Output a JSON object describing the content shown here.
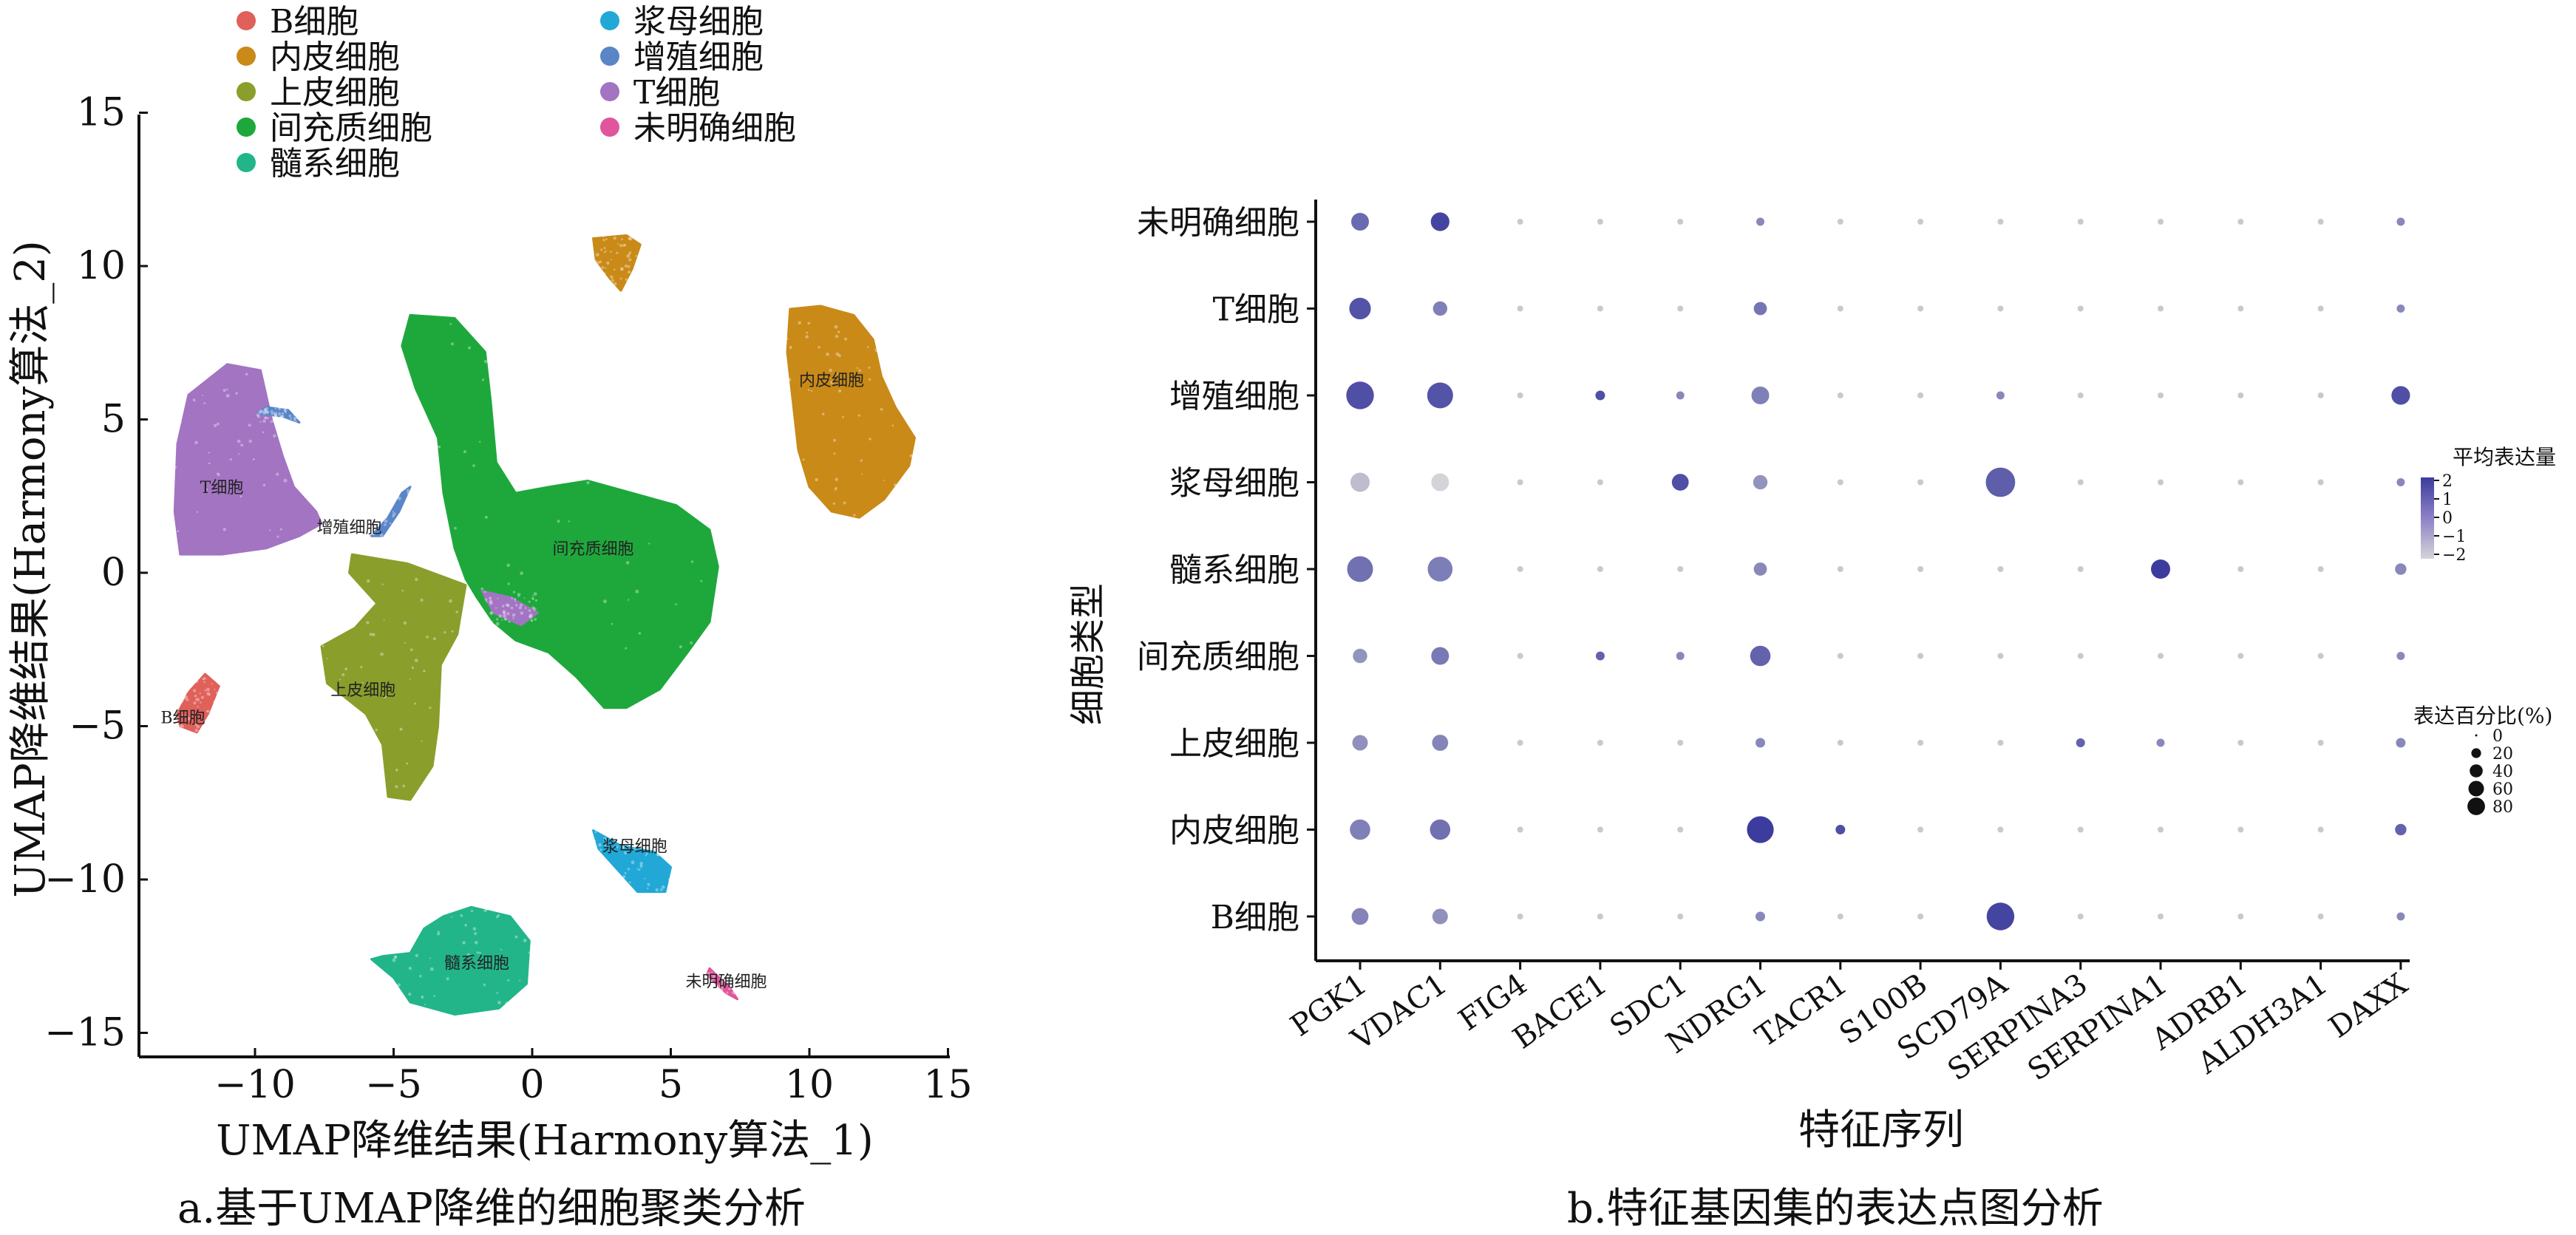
{
  "panels": {
    "a_caption": "a.基于UMAP降维的细胞聚类分析",
    "b_caption": "b.特征基因集的表达点图分析"
  },
  "chart_data": [
    {
      "type": "scatter",
      "subtype": "umap",
      "xlabel": "UMAP降维结果(Harmony算法_1)",
      "ylabel": "UMAP降维结果(Harmony算法_2)",
      "xlim": [
        -14,
        15
      ],
      "ylim": [
        -16,
        15
      ],
      "xticks": [
        -10,
        -5,
        0,
        5,
        10,
        15
      ],
      "yticks": [
        15,
        10,
        5,
        0,
        -5,
        -10,
        -15
      ],
      "xtick_labels": [
        "−10",
        "−5",
        "0",
        "5",
        "10",
        "15"
      ],
      "ytick_labels": [
        "15",
        "10",
        "5",
        "0",
        "−5",
        "−10",
        "−15"
      ],
      "legend": [
        {
          "name": "B细胞",
          "color": "#e0605a"
        },
        {
          "name": "内皮细胞",
          "color": "#c98a18"
        },
        {
          "name": "上皮细胞",
          "color": "#8a9e2c"
        },
        {
          "name": "间充质细胞",
          "color": "#1ea83c"
        },
        {
          "name": "髓系细胞",
          "color": "#22b58a"
        },
        {
          "name": "浆母细胞",
          "color": "#22a8d6"
        },
        {
          "name": "增殖细胞",
          "color": "#5a86c8"
        },
        {
          "name": "T细胞",
          "color": "#a274c2"
        },
        {
          "name": "未明确细胞",
          "color": "#e0559b"
        }
      ],
      "clusters": [
        {
          "label": "B细胞",
          "color": "#e0605a",
          "label_pos": [
            -12.6,
            -4.9
          ],
          "polygon": [
            [
              -12.8,
              -4.6
            ],
            [
              -12.4,
              -3.9
            ],
            [
              -11.8,
              -3.3
            ],
            [
              -11.3,
              -3.7
            ],
            [
              -11.7,
              -4.6
            ],
            [
              -12.1,
              -5.2
            ],
            [
              -12.7,
              -5.0
            ]
          ]
        },
        {
          "label": "内皮细胞",
          "color": "#c98a18",
          "label_pos": [
            10.8,
            6.1
          ],
          "polygon": [
            [
              9.3,
              8.6
            ],
            [
              10.4,
              8.7
            ],
            [
              11.6,
              8.4
            ],
            [
              12.3,
              7.6
            ],
            [
              12.6,
              6.4
            ],
            [
              13.1,
              5.4
            ],
            [
              13.8,
              4.4
            ],
            [
              13.6,
              3.5
            ],
            [
              12.7,
              2.4
            ],
            [
              11.8,
              1.8
            ],
            [
              10.8,
              2.0
            ],
            [
              10.0,
              2.8
            ],
            [
              9.6,
              4.0
            ],
            [
              9.4,
              5.6
            ],
            [
              9.2,
              7.2
            ]
          ]
        },
        {
          "label": "上皮细胞",
          "color": "#8a9e2c",
          "label_pos": [
            -6.1,
            -4.0
          ],
          "polygon": [
            [
              -6.5,
              0.6
            ],
            [
              -4.5,
              0.3
            ],
            [
              -3.0,
              -0.2
            ],
            [
              -2.4,
              -0.4
            ],
            [
              -2.7,
              -2.0
            ],
            [
              -3.3,
              -3.0
            ],
            [
              -3.4,
              -5.0
            ],
            [
              -3.6,
              -6.3
            ],
            [
              -4.4,
              -7.4
            ],
            [
              -5.2,
              -7.3
            ],
            [
              -5.4,
              -5.6
            ],
            [
              -6.0,
              -4.6
            ],
            [
              -7.4,
              -3.6
            ],
            [
              -7.6,
              -2.4
            ],
            [
              -6.4,
              -1.8
            ],
            [
              -5.6,
              -1.0
            ],
            [
              -6.6,
              0.0
            ]
          ]
        },
        {
          "label": "间充质细胞",
          "color": "#1ea83c",
          "label_pos": [
            2.2,
            0.6
          ],
          "polygon": [
            [
              -4.4,
              8.4
            ],
            [
              -2.8,
              8.3
            ],
            [
              -1.7,
              7.2
            ],
            [
              -1.5,
              5.6
            ],
            [
              -1.3,
              3.6
            ],
            [
              -0.6,
              2.6
            ],
            [
              0.6,
              2.8
            ],
            [
              2.0,
              3.0
            ],
            [
              3.6,
              2.6
            ],
            [
              5.2,
              2.2
            ],
            [
              6.4,
              1.4
            ],
            [
              6.7,
              0.2
            ],
            [
              6.4,
              -1.6
            ],
            [
              5.6,
              -2.6
            ],
            [
              4.6,
              -3.8
            ],
            [
              3.4,
              -4.4
            ],
            [
              2.6,
              -4.4
            ],
            [
              1.6,
              -3.4
            ],
            [
              0.6,
              -2.6
            ],
            [
              -0.6,
              -2.2
            ],
            [
              -1.4,
              -1.6
            ],
            [
              -2.0,
              -0.8
            ],
            [
              -2.4,
              -0.2
            ],
            [
              -2.8,
              0.8
            ],
            [
              -3.2,
              2.6
            ],
            [
              -3.4,
              4.4
            ],
            [
              -4.2,
              6.0
            ],
            [
              -4.7,
              7.4
            ]
          ]
        },
        {
          "label": "髓系细胞",
          "color": "#22b58a",
          "label_pos": [
            -2.0,
            -12.9
          ],
          "polygon": [
            [
              -3.2,
              -11.2
            ],
            [
              -2.2,
              -10.9
            ],
            [
              -0.8,
              -11.2
            ],
            [
              -0.1,
              -12.0
            ],
            [
              -0.2,
              -13.4
            ],
            [
              -1.2,
              -14.2
            ],
            [
              -2.8,
              -14.4
            ],
            [
              -4.4,
              -14.0
            ],
            [
              -5.0,
              -13.2
            ],
            [
              -5.8,
              -12.6
            ],
            [
              -5.4,
              -12.5
            ],
            [
              -4.4,
              -12.4
            ],
            [
              -3.9,
              -11.6
            ]
          ]
        },
        {
          "label": "浆母细胞",
          "color": "#22a8d6",
          "label_pos": [
            3.7,
            -9.1
          ],
          "polygon": [
            [
              2.2,
              -8.4
            ],
            [
              3.2,
              -8.9
            ],
            [
              4.4,
              -9.1
            ],
            [
              5.0,
              -9.6
            ],
            [
              4.8,
              -10.4
            ],
            [
              3.8,
              -10.4
            ],
            [
              3.2,
              -9.8
            ],
            [
              2.4,
              -9.0
            ]
          ]
        },
        {
          "label": "增殖细胞",
          "color": "#5a86c8",
          "label_pos": [
            -6.6,
            1.3
          ],
          "polygon": [
            [
              -5.4,
              1.2
            ],
            [
              -4.8,
              2.0
            ],
            [
              -4.4,
              2.8
            ],
            [
              -4.7,
              2.6
            ],
            [
              -5.2,
              1.8
            ],
            [
              -5.8,
              1.2
            ]
          ]
        },
        {
          "label": "T细胞",
          "color": "#a274c2",
          "label_pos": [
            -11.2,
            2.6
          ],
          "polygon": [
            [
              -12.4,
              5.8
            ],
            [
              -11.0,
              6.8
            ],
            [
              -9.8,
              6.6
            ],
            [
              -9.4,
              5.0
            ],
            [
              -9.0,
              3.8
            ],
            [
              -8.6,
              2.8
            ],
            [
              -7.8,
              2.0
            ],
            [
              -7.6,
              1.6
            ],
            [
              -8.4,
              1.2
            ],
            [
              -9.6,
              0.8
            ],
            [
              -11.2,
              0.6
            ],
            [
              -12.7,
              0.6
            ],
            [
              -12.9,
              2.0
            ],
            [
              -12.8,
              4.2
            ]
          ]
        },
        {
          "label": "未明确细胞",
          "color": "#e0559b",
          "label_pos": [
            7.0,
            -13.5
          ],
          "polygon": [
            [
              6.4,
              -12.9
            ],
            [
              7.1,
              -13.5
            ],
            [
              7.4,
              -13.9
            ],
            [
              7.0,
              -13.7
            ],
            [
              6.3,
              -13.1
            ]
          ]
        }
      ],
      "extra_blobs": [
        {
          "color": "#c98a18",
          "polygon": [
            [
              2.2,
              10.9
            ],
            [
              3.4,
              11.0
            ],
            [
              3.9,
              10.7
            ],
            [
              3.6,
              9.9
            ],
            [
              3.2,
              9.2
            ],
            [
              2.8,
              9.6
            ],
            [
              2.3,
              10.2
            ]
          ]
        },
        {
          "color": "#5a86c8",
          "polygon": [
            [
              -9.9,
              5.2
            ],
            [
              -9.0,
              5.1
            ],
            [
              -8.4,
              4.9
            ],
            [
              -8.8,
              5.3
            ],
            [
              -9.6,
              5.4
            ]
          ]
        },
        {
          "color": "#a274c2",
          "polygon": [
            [
              -1.8,
              -0.6
            ],
            [
              -0.8,
              -0.8
            ],
            [
              0.2,
              -1.3
            ],
            [
              -0.4,
              -1.7
            ],
            [
              -1.4,
              -1.3
            ]
          ]
        }
      ]
    },
    {
      "type": "scatter",
      "subtype": "dotplot",
      "xlabel": "特征序列",
      "ylabel": "细胞类型",
      "genes": [
        "PGK1",
        "VDAC1",
        "FIG4",
        "BACE1",
        "SDC1",
        "NDRG1",
        "TACR1",
        "S100B",
        "SCD79A",
        "SERPINA3",
        "SERPINA1",
        "ADRB1",
        "ALDH3A1",
        "DAXX"
      ],
      "cell_types": [
        "未明确细胞",
        "T细胞",
        "增殖细胞",
        "浆母细胞",
        "髓系细胞",
        "间充质细胞",
        "上皮细胞",
        "内皮细胞",
        "B细胞"
      ],
      "pct_expressed": [
        [
          25,
          28,
          1,
          1,
          1,
          3,
          1,
          1,
          1,
          1,
          1,
          1,
          1,
          3
        ],
        [
          40,
          15,
          1,
          1,
          1,
          12,
          1,
          1,
          1,
          1,
          1,
          1,
          1,
          3
        ],
        [
          70,
          60,
          1,
          5,
          3,
          25,
          1,
          1,
          3,
          1,
          1,
          1,
          1,
          28
        ],
        [
          30,
          25,
          1,
          1,
          22,
          15,
          1,
          1,
          80,
          1,
          1,
          1,
          1,
          3
        ],
        [
          60,
          55,
          1,
          1,
          1,
          12,
          1,
          1,
          1,
          1,
          30,
          1,
          1,
          8
        ],
        [
          15,
          25,
          1,
          4,
          3,
          35,
          1,
          1,
          1,
          1,
          1,
          1,
          1,
          3
        ],
        [
          18,
          20,
          1,
          1,
          1,
          5,
          1,
          1,
          1,
          4,
          3,
          1,
          1,
          5
        ],
        [
          35,
          35,
          1,
          1,
          1,
          65,
          5,
          1,
          1,
          1,
          1,
          1,
          1,
          8
        ],
        [
          22,
          18,
          1,
          1,
          1,
          5,
          1,
          1,
          70,
          1,
          1,
          1,
          1,
          3
        ]
      ],
      "avg_expression": [
        [
          0.8,
          1.8,
          0,
          0,
          0,
          0,
          0,
          0,
          0,
          0,
          0,
          0,
          0,
          0
        ],
        [
          1.4,
          0.2,
          0,
          0,
          0,
          0.5,
          0,
          0,
          0,
          0,
          0,
          0,
          0,
          0
        ],
        [
          1.5,
          1.4,
          0,
          1.5,
          0,
          0.2,
          0,
          0,
          0,
          0,
          0,
          0,
          0,
          1.5
        ],
        [
          -1.4,
          -2.0,
          0,
          0,
          1.5,
          -0.3,
          0,
          0,
          1.1,
          0,
          0,
          0,
          0,
          0
        ],
        [
          0.6,
          0.3,
          0,
          0,
          0,
          0,
          0,
          0,
          0,
          0,
          2.0,
          0,
          0,
          0
        ],
        [
          -0.3,
          0.4,
          0,
          1.0,
          0,
          1.0,
          0,
          0,
          0,
          0,
          0,
          0,
          0,
          0
        ],
        [
          -0.2,
          0.1,
          0,
          0,
          0,
          0,
          0,
          0,
          0,
          1.0,
          0,
          0,
          0,
          0
        ],
        [
          0.2,
          0.6,
          0,
          0,
          0,
          2.0,
          1.5,
          0,
          0,
          0,
          0,
          0,
          0,
          1.0
        ],
        [
          0.1,
          -0.2,
          0,
          0,
          0,
          0,
          0,
          0,
          1.8,
          0,
          0,
          0,
          0,
          0
        ]
      ],
      "color_legend": {
        "title": "平均表达量",
        "ticks": [
          2,
          1,
          0,
          -1,
          -2
        ],
        "tick_labels": [
          "2",
          "1",
          "0",
          "−1",
          "−2"
        ],
        "high_color": "#3c3c9e",
        "low_color": "#d4d4d8"
      },
      "size_legend": {
        "title": "表达百分比(%)",
        "values": [
          0,
          20,
          40,
          60,
          80
        ]
      }
    }
  ]
}
